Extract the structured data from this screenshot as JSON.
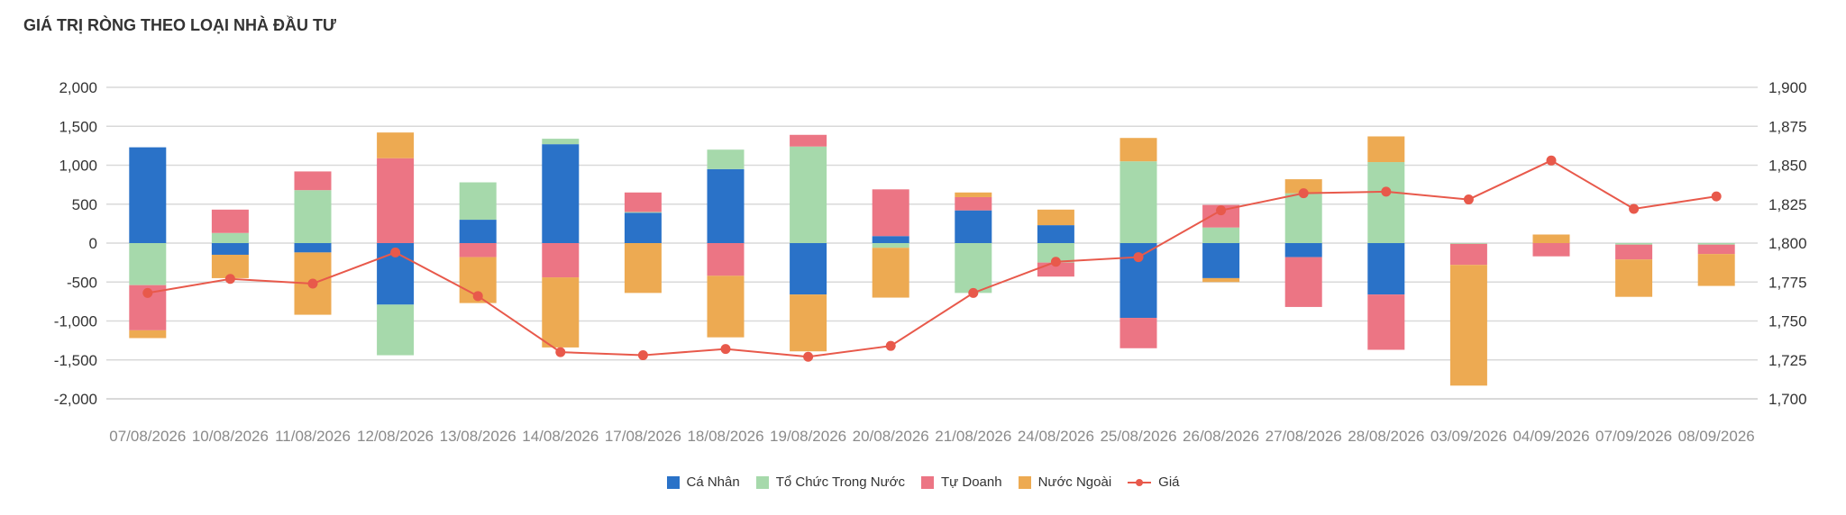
{
  "header": {
    "title": "GIÁ TRỊ RÒNG THEO LOẠI NHÀ ĐẦU TƯ"
  },
  "legend": {
    "ca_nhan": "Cá Nhân",
    "to_chuc": "Tổ Chức Trong Nước",
    "tu_doanh": "Tự Doanh",
    "nuoc_ngoai": "Nước Ngoài",
    "gia": "Giá"
  },
  "colors": {
    "ca_nhan": "#2a72c8",
    "to_chuc": "#a6d9ab",
    "tu_doanh": "#ec7584",
    "nuoc_ngoai": "#edaa52",
    "gia": "#e8594b",
    "grid": "#d9d9d9"
  },
  "chart_data": {
    "type": "bar",
    "stacked": true,
    "categories": [
      "07/08/2026",
      "10/08/2026",
      "11/08/2026",
      "12/08/2026",
      "13/08/2026",
      "14/08/2026",
      "17/08/2026",
      "18/08/2026",
      "19/08/2026",
      "20/08/2026",
      "21/08/2026",
      "24/08/2026",
      "25/08/2026",
      "26/08/2026",
      "27/08/2026",
      "28/08/2026",
      "03/09/2026",
      "04/09/2026",
      "07/09/2026",
      "08/09/2026"
    ],
    "series": [
      {
        "name": "Cá Nhân",
        "key": "ca_nhan",
        "values": [
          1230,
          -150,
          -120,
          -790,
          300,
          1270,
          390,
          950,
          -660,
          90,
          420,
          230,
          -960,
          -450,
          -180,
          -660,
          0,
          0,
          0,
          0
        ]
      },
      {
        "name": "Tổ Chức Trong Nước",
        "key": "to_chuc",
        "values": [
          -540,
          130,
          680,
          -650,
          480,
          70,
          10,
          250,
          1240,
          -60,
          -640,
          -250,
          1050,
          200,
          640,
          1040,
          -10,
          0,
          -20,
          -20
        ]
      },
      {
        "name": "Tự Doanh",
        "key": "tu_doanh",
        "values": [
          -580,
          300,
          240,
          1090,
          -180,
          -440,
          250,
          -420,
          150,
          600,
          170,
          -180,
          -390,
          290,
          -640,
          -710,
          -270,
          -170,
          -190,
          -120
        ]
      },
      {
        "name": "Nước Ngoài",
        "key": "nuoc_ngoai",
        "values": [
          -100,
          -300,
          -800,
          330,
          -590,
          -900,
          -640,
          -790,
          -730,
          -640,
          60,
          200,
          300,
          -50,
          180,
          330,
          -1550,
          110,
          -480,
          -410
        ]
      }
    ],
    "line": {
      "name": "Giá",
      "key": "gia",
      "values": [
        1768,
        1777,
        1774,
        1794,
        1766,
        1730,
        1728,
        1732,
        1727,
        1734,
        1768,
        1788,
        1791,
        1821,
        1832,
        1833,
        1828,
        1853,
        1822,
        1830
      ]
    },
    "ylim": [
      -2000,
      2000
    ],
    "yticks": [
      "2,000",
      "1,500",
      "1,000",
      "500",
      "0",
      "-500",
      "-1,000",
      "-1,500",
      "-2,000"
    ],
    "y2lim": [
      1700,
      1900
    ],
    "y2ticks": [
      "1,900",
      "1,875",
      "1,850",
      "1,825",
      "1,800",
      "1,775",
      "1,750",
      "1,725",
      "1,700"
    ],
    "legend_position": "bottom",
    "grid": true
  }
}
